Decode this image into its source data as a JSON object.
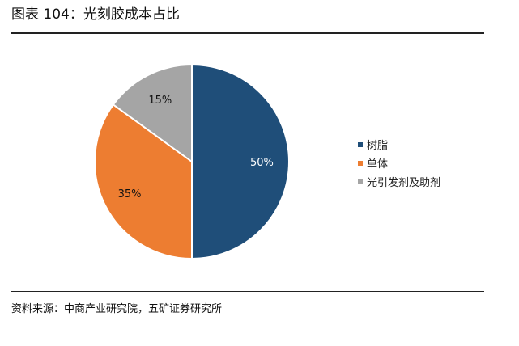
{
  "figure": {
    "title": "图表 104：光刻胶成本占比",
    "source": "资料来源：中商产业研究院，五矿证券研究所"
  },
  "chart_data": {
    "type": "pie",
    "title": "",
    "categories": [
      "树脂",
      "单体",
      "光引发剂及助剂"
    ],
    "values": [
      50,
      35,
      15
    ],
    "data_labels": [
      "50%",
      "35%",
      "15%"
    ],
    "colors": [
      "#1f4e79",
      "#ed7d31",
      "#a5a5a5"
    ],
    "label_colors": [
      "#ffffff",
      "#111111",
      "#111111"
    ],
    "legend_position": "right"
  }
}
